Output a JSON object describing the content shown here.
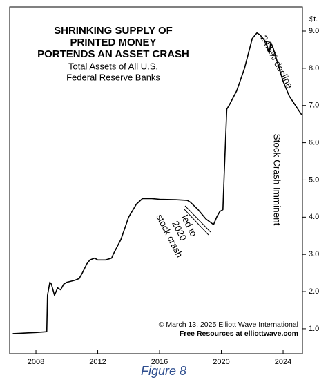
{
  "chart_data": {
    "type": "line",
    "title": [
      "SHRINKING SUPPLY OF",
      "PRINTED MONEY",
      "PORTENDS AN ASSET CRASH"
    ],
    "subtitle": [
      "Total Assets of All U.S.",
      "Federal Reserve Banks"
    ],
    "y_unit_label": "$t.",
    "annotations": {
      "decline": "24.5% decline",
      "imminent": "Stock Crash Imminent",
      "led": [
        "led to",
        "2020",
        "stock crash"
      ]
    },
    "credits": [
      "© March 13, 2025 Elliott Wave International",
      "Free Resources at elliottwave.com"
    ],
    "caption": "Figure 8",
    "color": "#000000",
    "x": [
      2006.5,
      2007.0,
      2007.5,
      2008.0,
      2008.7,
      2008.75,
      2008.9,
      2009.0,
      2009.2,
      2009.4,
      2009.6,
      2009.8,
      2010.0,
      2010.5,
      2010.8,
      2011.0,
      2011.3,
      2011.5,
      2011.8,
      2012.0,
      2012.5,
      2012.9,
      2013.0,
      2013.5,
      2014.0,
      2014.5,
      2014.9,
      2015.5,
      2016.0,
      2017.0,
      2017.8,
      2018.0,
      2018.5,
      2019.0,
      2019.5,
      2019.7,
      2019.9,
      2020.1,
      2020.2,
      2020.35,
      2020.5,
      2020.75,
      2021.0,
      2021.5,
      2022.0,
      2022.3,
      2022.5,
      2022.9,
      2023.1,
      2023.2,
      2023.35,
      2023.6,
      2024.0,
      2024.4,
      2024.8,
      2025.2
    ],
    "values": [
      0.87,
      0.88,
      0.89,
      0.9,
      0.92,
      1.9,
      2.25,
      2.2,
      1.9,
      2.1,
      2.05,
      2.2,
      2.25,
      2.3,
      2.35,
      2.5,
      2.75,
      2.85,
      2.9,
      2.85,
      2.85,
      2.9,
      3.0,
      3.4,
      4.0,
      4.35,
      4.5,
      4.5,
      4.48,
      4.47,
      4.45,
      4.4,
      4.2,
      3.95,
      3.8,
      4.0,
      4.15,
      4.2,
      5.3,
      6.9,
      7.0,
      7.2,
      7.4,
      8.0,
      8.8,
      8.95,
      8.9,
      8.7,
      8.4,
      8.7,
      8.55,
      8.2,
      7.65,
      7.25,
      7.0,
      6.75
    ],
    "xlim": [
      2006.3,
      2025.25
    ],
    "xticks": [
      2008,
      2012,
      2016,
      2020,
      2024
    ],
    "ylim": [
      0.33,
      9.65
    ],
    "yticks": [
      {
        "value": 1,
        "label": "1.0"
      },
      {
        "value": 2,
        "label": "2.0"
      },
      {
        "value": 3,
        "label": "3.0"
      },
      {
        "value": 4,
        "label": "4.0"
      },
      {
        "value": 5,
        "label": "5.0"
      },
      {
        "value": 6,
        "label": "6.0"
      },
      {
        "value": 7,
        "label": "7.0"
      },
      {
        "value": 8,
        "label": "8.0"
      },
      {
        "value": 9,
        "label": "9.0"
      }
    ]
  }
}
